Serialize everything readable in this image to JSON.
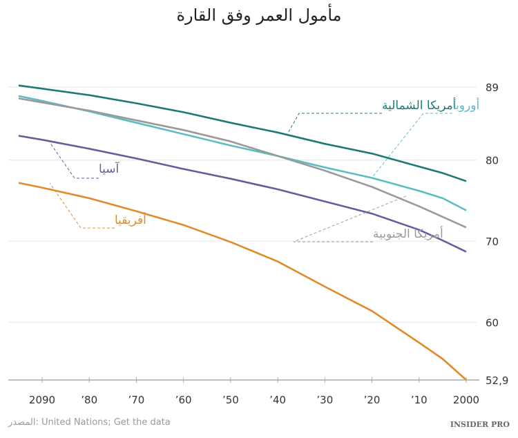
{
  "title": "مأمول العمر وفق القارة",
  "source": "المصدر: United Nations; Get the data",
  "brand": "INSIDER PRO",
  "chart_data": {
    "type": "line",
    "title": "مأمول العمر وفق القارة",
    "x_reversed": true,
    "xlim": [
      2095,
      2000
    ],
    "ylim": [
      52.9,
      89
    ],
    "grid": true,
    "x_ticks": [
      2090,
      2080,
      2070,
      2060,
      2050,
      2040,
      2030,
      2020,
      2010,
      2000
    ],
    "x_tick_labels": [
      "2090",
      "’80",
      "’70",
      "’60",
      "’50",
      "’40",
      "’30",
      "’20",
      "’10",
      "2000"
    ],
    "y_ticks": [
      52.9,
      60,
      70,
      80,
      89
    ],
    "y_tick_labels": [
      "52,9",
      "60",
      "70",
      "80",
      "89"
    ],
    "x": [
      2000,
      2005,
      2010,
      2020,
      2030,
      2040,
      2050,
      2060,
      2070,
      2080,
      2090,
      2095
    ],
    "series": [
      {
        "name": "أمريكا الشمالية",
        "color": "#1b7a78",
        "values": [
          77.4,
          78.4,
          79.2,
          80.8,
          82.0,
          83.4,
          84.6,
          85.9,
          87.0,
          88.0,
          88.8,
          89.2
        ]
      },
      {
        "name": "أوروبا",
        "color": "#5bbcc4",
        "values": [
          73.8,
          75.3,
          76.2,
          77.8,
          79.1,
          80.5,
          81.8,
          83.2,
          84.6,
          86.0,
          87.3,
          87.9
        ]
      },
      {
        "name": "أمريكا الجنوبية",
        "color": "#9a9a9a",
        "values": [
          71.7,
          73.0,
          74.3,
          76.7,
          78.7,
          80.5,
          82.3,
          83.7,
          84.9,
          86.1,
          87.1,
          87.6
        ]
      },
      {
        "name": "آسيا",
        "color": "#6a5a9c",
        "values": [
          68.7,
          70.1,
          71.4,
          73.4,
          74.9,
          76.4,
          77.7,
          78.9,
          80.2,
          81.4,
          82.5,
          83.0
        ]
      },
      {
        "name": "أفريقيا",
        "color": "#e08a2a",
        "values": [
          52.9,
          55.5,
          57.5,
          61.4,
          64.4,
          67.5,
          69.9,
          72.0,
          73.7,
          75.3,
          76.6,
          77.2
        ]
      }
    ]
  }
}
